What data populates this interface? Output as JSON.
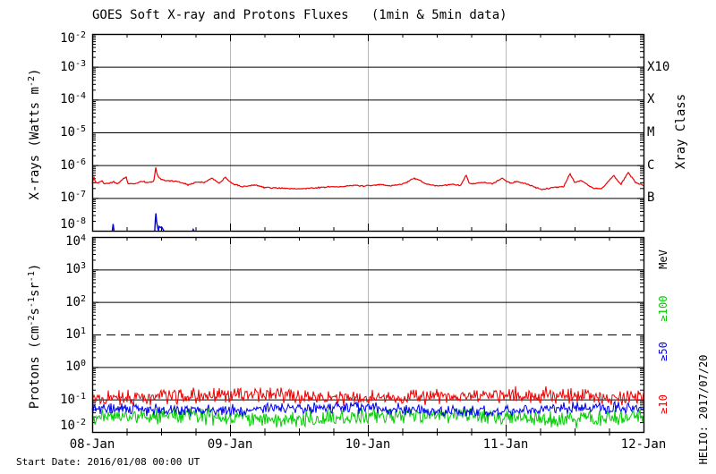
{
  "title": "GOES Soft X-ray and Protons Fluxes   (1min & 5min data)",
  "footer": {
    "start_date": "Start Date: 2016/01/08 00:00 UT"
  },
  "watermark": "HELIO: 2017/07/20",
  "colors": {
    "xray_long": "#ee0000",
    "xray_short": "#0000ee",
    "p10": "#ee0000",
    "p50": "#0000ee",
    "p100": "#00cc00",
    "day_grid": "#b8b8b8",
    "frame": "#000000"
  },
  "x_axis": {
    "tick_labels": [
      "08-Jan",
      "09-Jan",
      "10-Jan",
      "11-Jan",
      "12-Jan"
    ],
    "range_hours": [
      0,
      96
    ],
    "minor_tick_hours": 6
  },
  "chart_data": [
    {
      "type": "line",
      "name": "xray-panel",
      "ylabel": "X-rays (Watts m^-2^)",
      "ylim": [
        1e-08,
        0.01
      ],
      "y_exponents": [
        -2,
        -3,
        -4,
        -5,
        -6,
        -7,
        -8
      ],
      "gridline_exponents": [
        -3,
        -4,
        -5,
        -6,
        -7
      ],
      "right_axis_title": "Xray Class",
      "right_labels": [
        {
          "text": "X10",
          "exp": -3
        },
        {
          "text": "X",
          "exp": -4
        },
        {
          "text": "M",
          "exp": -5
        },
        {
          "text": "C",
          "exp": -6
        },
        {
          "text": "B",
          "exp": -7
        }
      ],
      "series": [
        {
          "name": "xray-long-wavelength",
          "color_key": "xray_long",
          "points_h_flux": [
            [
              0,
              2.8e-07
            ],
            [
              0.3,
              4.2e-07
            ],
            [
              0.7,
              2.8e-07
            ],
            [
              1.2,
              3e-07
            ],
            [
              1.6,
              3.3e-07
            ],
            [
              2.2,
              2.7e-07
            ],
            [
              3.0,
              2.8e-07
            ],
            [
              3.7,
              3.1e-07
            ],
            [
              4.4,
              2.7e-07
            ],
            [
              5.9,
              4.5e-07
            ],
            [
              6.2,
              2.8e-07
            ],
            [
              7.5,
              2.7e-07
            ],
            [
              8.8,
              3.3e-07
            ],
            [
              9.5,
              2.9e-07
            ],
            [
              10.4,
              3.1e-07
            ],
            [
              10.8,
              3.5e-07
            ],
            [
              11.05,
              9e-07
            ],
            [
              11.3,
              5e-07
            ],
            [
              11.7,
              4.1e-07
            ],
            [
              12.5,
              3.4e-07
            ],
            [
              13.6,
              3.3e-07
            ],
            [
              15.1,
              3.1e-07
            ],
            [
              16.7,
              2.5e-07
            ],
            [
              18.2,
              3.1e-07
            ],
            [
              19.5,
              3e-07
            ],
            [
              20.9,
              4e-07
            ],
            [
              22.1,
              2.8e-07
            ],
            [
              23.2,
              4.3e-07
            ],
            [
              24.2,
              2.9e-07
            ],
            [
              24.8,
              2.6e-07
            ],
            [
              26.3,
              2.2e-07
            ],
            [
              28.4,
              2.5e-07
            ],
            [
              29.9,
              2.1e-07
            ],
            [
              32.3,
              2e-07
            ],
            [
              35.4,
              1.9e-07
            ],
            [
              38.5,
              2e-07
            ],
            [
              41.3,
              2.2e-07
            ],
            [
              43.2,
              2.2e-07
            ],
            [
              45.5,
              2.4e-07
            ],
            [
              47.1,
              2.3e-07
            ],
            [
              48.6,
              2.4e-07
            ],
            [
              50.2,
              2.6e-07
            ],
            [
              51.7,
              2.3e-07
            ],
            [
              53.3,
              2.5e-07
            ],
            [
              54.9,
              3e-07
            ],
            [
              55.9,
              4e-07
            ],
            [
              56.9,
              3.6e-07
            ],
            [
              58.0,
              2.7e-07
            ],
            [
              60.3,
              2.3e-07
            ],
            [
              62.6,
              2.6e-07
            ],
            [
              64.2,
              2.4e-07
            ],
            [
              65.1,
              5e-07
            ],
            [
              65.6,
              2.9e-07
            ],
            [
              66.0,
              2.7e-07
            ],
            [
              68.1,
              3e-07
            ],
            [
              69.7,
              2.7e-07
            ],
            [
              71.4,
              4e-07
            ],
            [
              72.8,
              2.8e-07
            ],
            [
              74.0,
              3.2e-07
            ],
            [
              75.9,
              2.6e-07
            ],
            [
              78.2,
              1.8e-07
            ],
            [
              80.6,
              2.1e-07
            ],
            [
              82.1,
              2.2e-07
            ],
            [
              83.2,
              5.5e-07
            ],
            [
              84.0,
              3e-07
            ],
            [
              85.2,
              3.4e-07
            ],
            [
              87.1,
              2e-07
            ],
            [
              88.7,
              1.9e-07
            ],
            [
              90.8,
              4.8e-07
            ],
            [
              92.1,
              2.6e-07
            ],
            [
              93.3,
              6e-07
            ],
            [
              94.6,
              3e-07
            ],
            [
              96,
              2.4e-07
            ]
          ]
        },
        {
          "name": "xray-short-wavelength",
          "color_key": "xray_short",
          "segments": [
            [
              [
                3.5,
                1e-08
              ],
              [
                3.65,
                1.6e-08
              ],
              [
                3.8,
                1e-08
              ]
            ],
            [
              [
                10.9,
                1e-08
              ],
              [
                11.0,
                2.2e-08
              ],
              [
                11.1,
                3.4e-08
              ],
              [
                11.2,
                2e-08
              ],
              [
                11.4,
                1.2e-08
              ],
              [
                11.55,
                1e-08
              ],
              [
                11.65,
                1.35e-08
              ],
              [
                11.9,
                1.25e-08
              ],
              [
                12.1,
                1.3e-08
              ],
              [
                12.4,
                1.05e-08
              ],
              [
                12.5,
                1e-08
              ]
            ],
            [
              [
                17.5,
                1e-08
              ],
              [
                17.6,
                1.1e-08
              ],
              [
                17.7,
                1e-08
              ]
            ]
          ]
        }
      ]
    },
    {
      "type": "line",
      "name": "proton-panel",
      "ylabel": "Protons (cm^-2^s^-1^sr^-1^)",
      "ylim": [
        0.01,
        10000.0
      ],
      "y_exponents": [
        4,
        3,
        2,
        1,
        0,
        -1,
        -2
      ],
      "gridline_exponents": [
        3,
        2,
        0,
        -1
      ],
      "dashed_threshold": 10,
      "right_axis_title": "MeV",
      "right_labels": [
        {
          "text": "≥100",
          "color_key": "p100"
        },
        {
          "text": "≥50",
          "color_key": "p50"
        },
        {
          "text": "≥10",
          "color_key": "p10"
        }
      ],
      "noise_seed": 20160108,
      "series": [
        {
          "name": "protons-ge-100MeV",
          "color_key": "p100",
          "band": {
            "base": 0.028,
            "spread": 0.3
          }
        },
        {
          "name": "protons-ge-50MeV",
          "color_key": "p50",
          "band": {
            "base": 0.05,
            "spread": 0.22
          }
        },
        {
          "name": "protons-ge-10MeV",
          "color_key": "p10",
          "band": {
            "base": 0.125,
            "spread": 0.28
          }
        }
      ]
    }
  ]
}
